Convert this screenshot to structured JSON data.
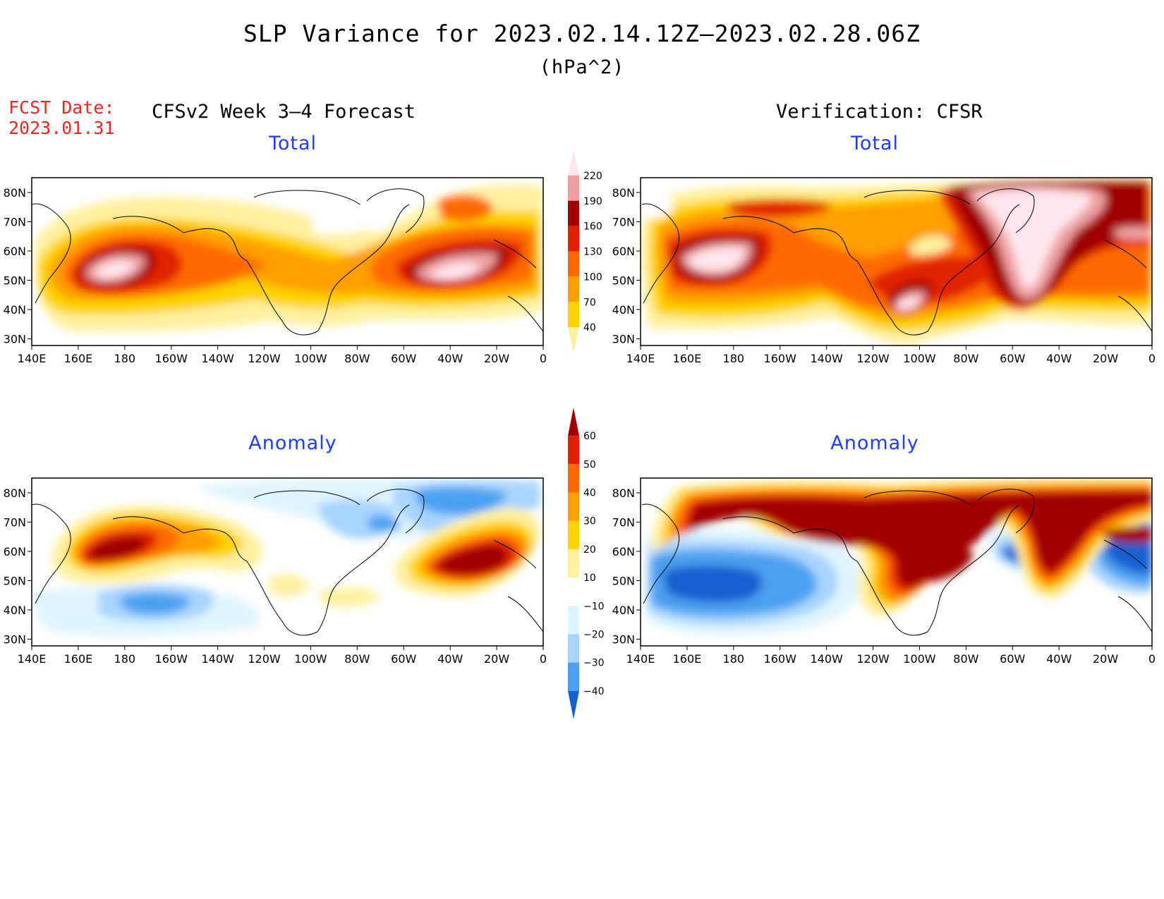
{
  "title": "SLP Variance for 2023.02.14.12Z–2023.02.28.06Z",
  "units": "(hPa^2)",
  "fcst": {
    "label": "FCST Date:",
    "date": "2023.01.31"
  },
  "columns": {
    "left": "CFSv2 Week 3–4 Forecast",
    "right": "Verification: CFSR"
  },
  "panels": {
    "total_label": "Total",
    "anomaly_label": "Anomaly"
  },
  "axes": {
    "lon_ticks": [
      "140E",
      "160E",
      "180",
      "160W",
      "140W",
      "120W",
      "100W",
      "80W",
      "60W",
      "40W",
      "20W",
      "0"
    ],
    "lat_ticks_total": [
      "80N",
      "70N",
      "60N",
      "50N",
      "40N",
      "30N"
    ],
    "lat_ticks_anomaly": [
      "80N",
      "70N",
      "60N",
      "50N",
      "40N",
      "30N"
    ]
  },
  "colorbars": {
    "total": {
      "levels": [
        "40",
        "70",
        "100",
        "130",
        "160",
        "190",
        "220"
      ],
      "colors": [
        "#fff0a0",
        "#ffd200",
        "#ff9f00",
        "#ff6a00",
        "#e02000",
        "#a00000",
        "#f0a0a0",
        "#ffe6ec"
      ]
    },
    "anomaly": {
      "levels": [
        "60",
        "50",
        "40",
        "30",
        "20",
        "10",
        "−10",
        "−20",
        "−30",
        "−40"
      ],
      "colors": [
        "#a00000",
        "#e02000",
        "#ff6a00",
        "#ff9f00",
        "#ffd200",
        "#fff0a0",
        "#ffffff",
        "#dff4ff",
        "#a8d4ff",
        "#4ba0f0",
        "#1460d0"
      ]
    }
  },
  "colors": {
    "title_red": "#ff2020",
    "subtitle_blue": "#1e3cff"
  }
}
